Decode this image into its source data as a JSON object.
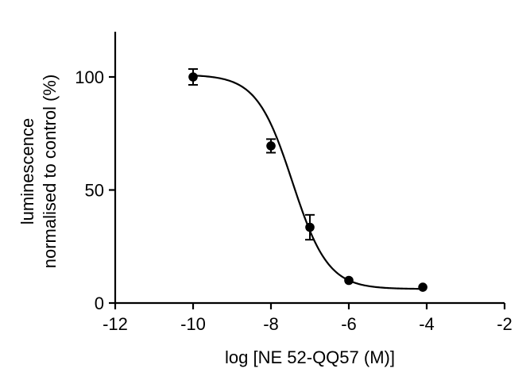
{
  "chart_data": {
    "type": "scatter",
    "xlabel": "log [NE 52-QQ57 (M)]",
    "ylabel_lines": [
      "luminescence",
      "normalised to control (%)"
    ],
    "xlim": [
      -12,
      -2
    ],
    "ylim": [
      0,
      120
    ],
    "xticks": [
      -12,
      -10,
      -8,
      -6,
      -4,
      -2
    ],
    "yticks": [
      0,
      50,
      100
    ],
    "grid": false,
    "legend": "none",
    "points": [
      {
        "x": -10.0,
        "y": 100.0,
        "err": 3.5
      },
      {
        "x": -8.0,
        "y": 69.5,
        "err": 3.0
      },
      {
        "x": -7.0,
        "y": 33.5,
        "err": 5.5
      },
      {
        "x": -6.0,
        "y": 10.0,
        "err": 0
      },
      {
        "x": -4.1,
        "y": 7.0,
        "err": 0
      }
    ],
    "fit_curve": {
      "model": "sigmoidal dose-response",
      "bottom": 6.2,
      "top": 101.0,
      "log_ic50": -7.45,
      "hill_slope": -0.95
    },
    "colors": {
      "marks": "#000000",
      "background": "#ffffff"
    }
  }
}
